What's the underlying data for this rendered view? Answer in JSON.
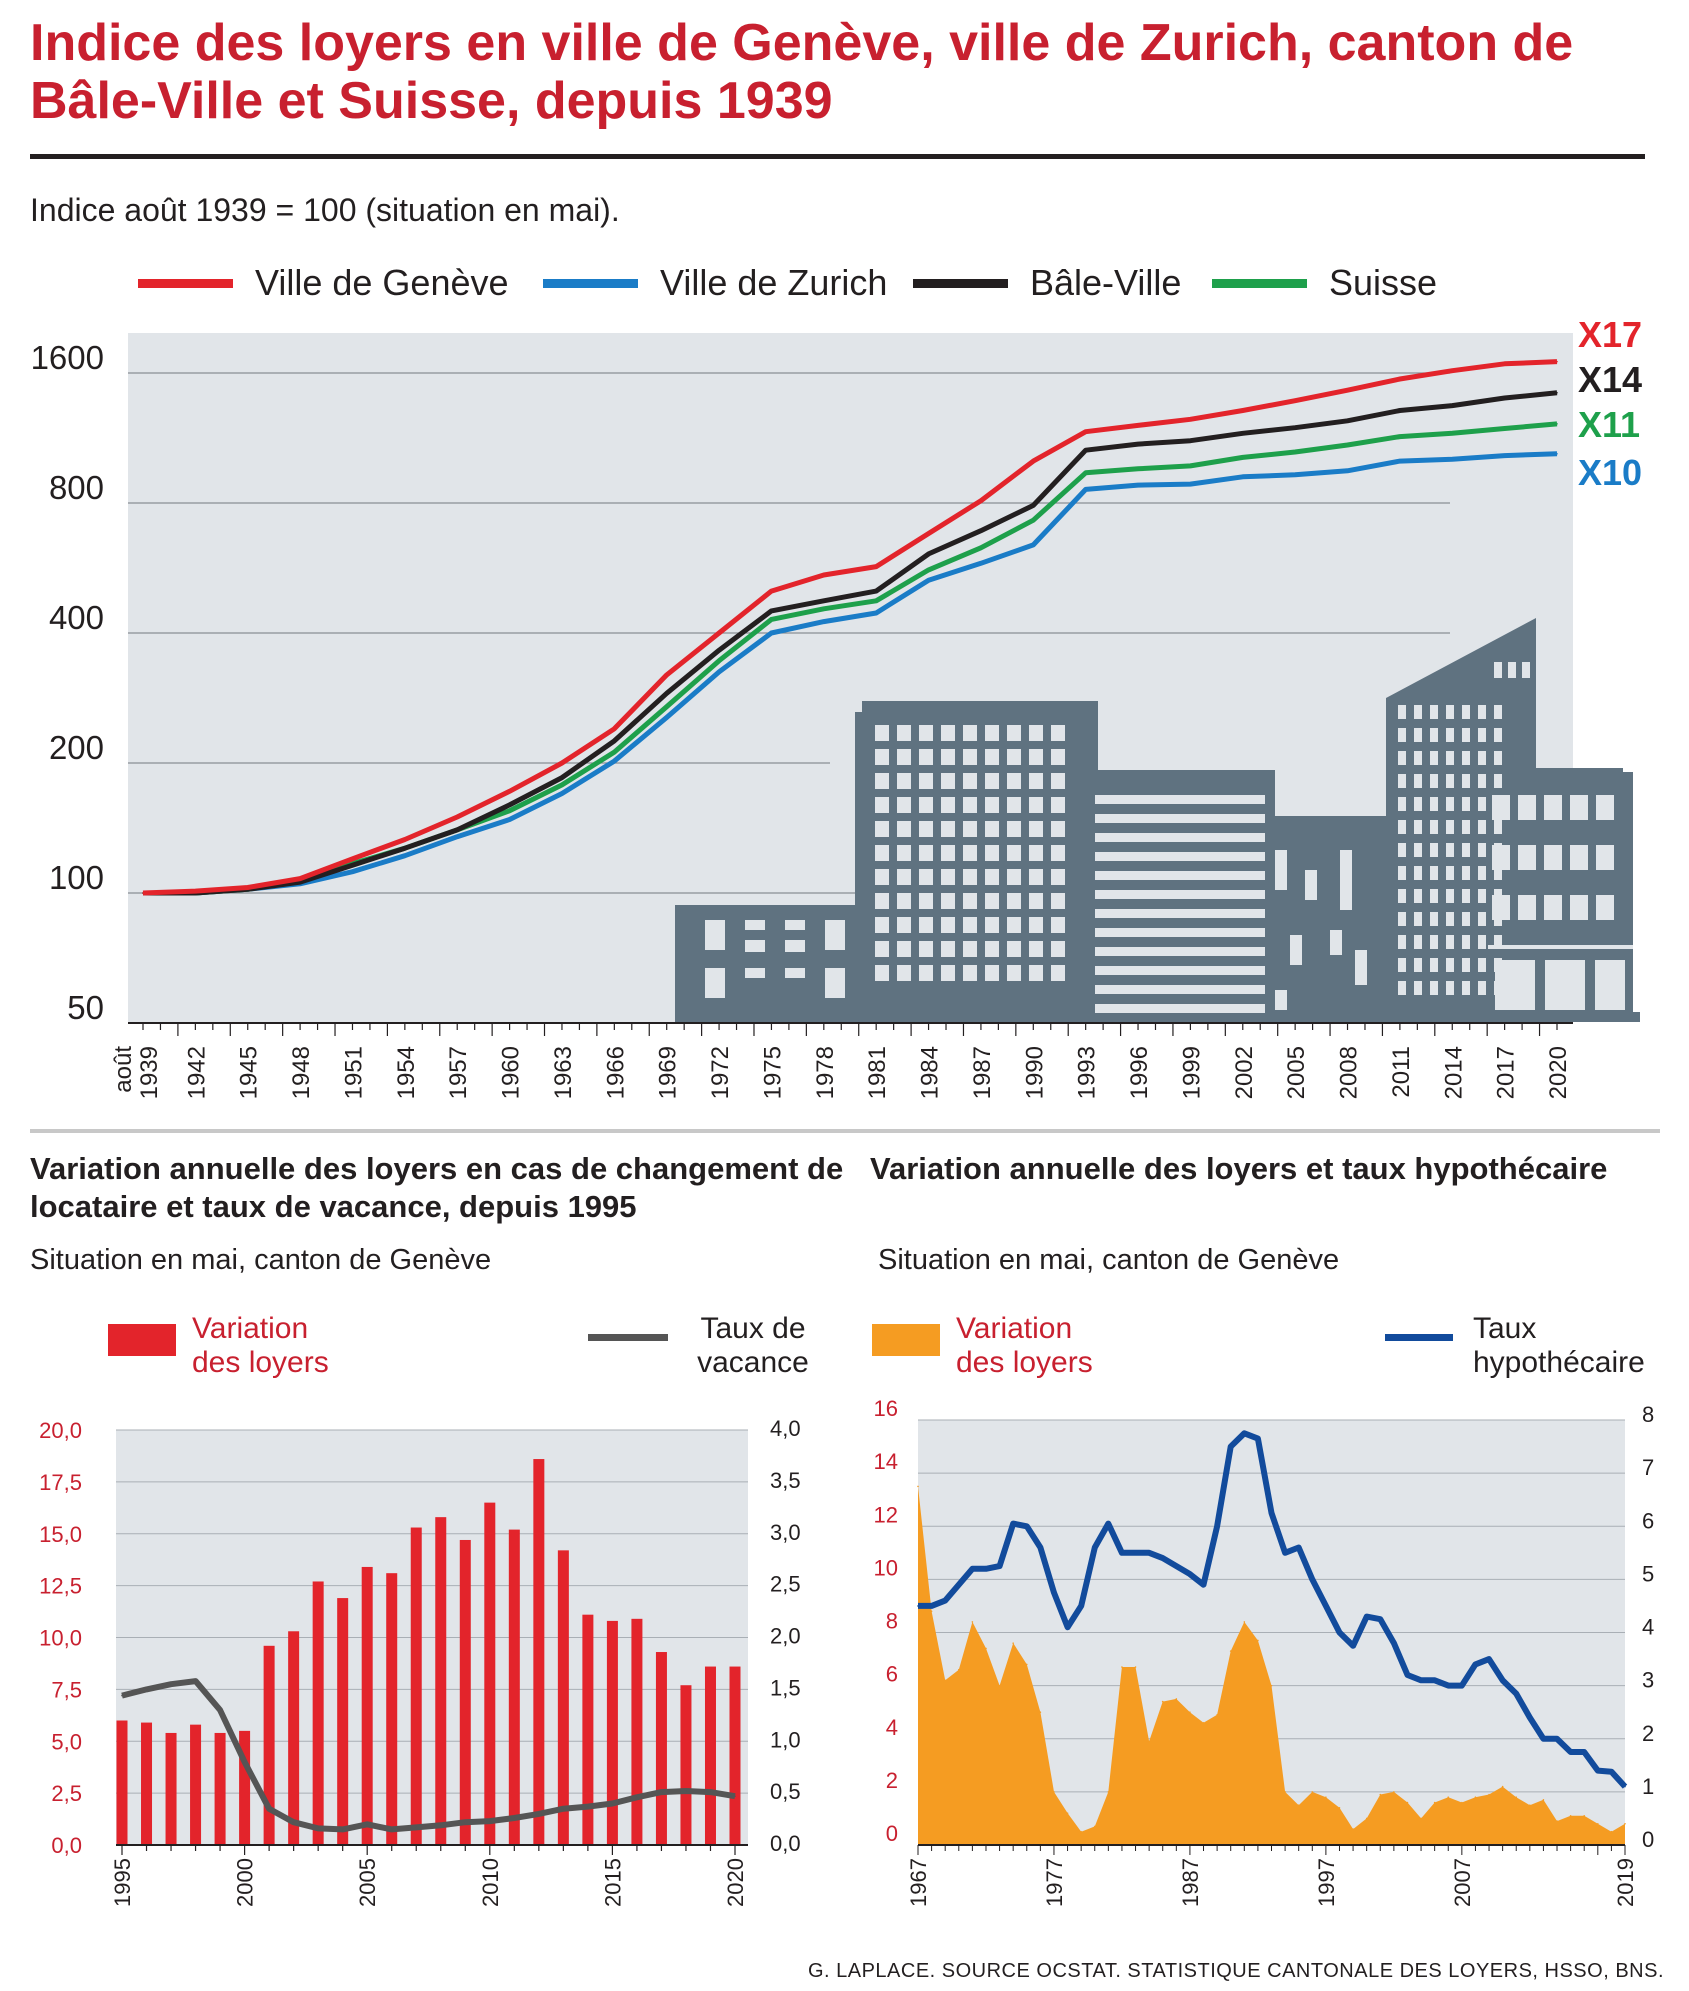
{
  "title": "Indice des loyers en ville de Genève, ville de Zurich, canton de Bâle-Ville et Suisse, depuis 1939",
  "subtitle": "Indice août 1939 = 100 (situation en mai).",
  "source": "G. LAPLACE. SOURCE OCSTAT. STATISTIQUE CANTONALE DES LOYERS, HSSO, BNS.",
  "colors": {
    "geneve": "#e3242b",
    "zurich": "#1a7cc7",
    "bale": "#231f20",
    "suisse": "#1ea04b",
    "bar": "#e3242b",
    "vacance": "#555555",
    "orange": "#f59c22",
    "hypo": "#124b9c",
    "plot_bg": "#e1e5e9",
    "building": "#5f7280"
  },
  "chart_data": [
    {
      "type": "line",
      "title": "Indice des loyers en ville de Genève, ville de Zurich, canton de Bâle-Ville et Suisse, depuis 1939",
      "subtitle": "Indice août 1939 = 100 (situation en mai).",
      "scale": "log",
      "ylim": [
        50,
        2000
      ],
      "yticks": [
        50,
        100,
        200,
        400,
        800,
        1600
      ],
      "ytick_labels": [
        "50",
        "100",
        "200",
        "400",
        "800",
        "1600"
      ],
      "xlim": [
        1939,
        2020
      ],
      "xtick_labels": [
        "août 1939",
        "1942",
        "1945",
        "1948",
        "1951",
        "1954",
        "1957",
        "1960",
        "1963",
        "1966",
        "1969",
        "1972",
        "1975",
        "1978",
        "1981",
        "1984",
        "1987",
        "1990",
        "1993",
        "1996",
        "1999",
        "2002",
        "2005",
        "2008",
        "2011",
        "2014",
        "2017",
        "2020"
      ],
      "x": [
        1939,
        1942,
        1945,
        1948,
        1951,
        1954,
        1957,
        1960,
        1963,
        1966,
        1969,
        1972,
        1975,
        1978,
        1981,
        1984,
        1987,
        1990,
        1993,
        1996,
        1999,
        2002,
        2005,
        2008,
        2011,
        2014,
        2017,
        2020
      ],
      "series": [
        {
          "name": "Ville de Genève",
          "end_label": "X17",
          "values": [
            100,
            101,
            103,
            108,
            120,
            133,
            150,
            172,
            200,
            240,
            320,
            400,
            500,
            545,
            570,
            680,
            810,
            1000,
            1170,
            1210,
            1250,
            1310,
            1380,
            1460,
            1550,
            1620,
            1680,
            1700
          ]
        },
        {
          "name": "Ville de Zurich",
          "end_label": "X10",
          "values": [
            100,
            100,
            102,
            105,
            112,
            122,
            135,
            148,
            170,
            202,
            255,
            325,
            400,
            425,
            445,
            530,
            580,
            640,
            860,
            880,
            885,
            920,
            930,
            950,
            1000,
            1010,
            1030,
            1040
          ]
        },
        {
          "name": "Bâle-Ville",
          "end_label": "X14",
          "values": [
            100,
            100,
            102,
            106,
            116,
            127,
            140,
            160,
            185,
            225,
            290,
            365,
            450,
            475,
            500,
            610,
            690,
            790,
            1060,
            1095,
            1115,
            1160,
            1195,
            1240,
            1310,
            1345,
            1400,
            1440
          ]
        },
        {
          "name": "Suisse",
          "end_label": "X11",
          "values": [
            100,
            100,
            102,
            107,
            117,
            127,
            140,
            155,
            178,
            212,
            270,
            345,
            430,
            455,
            475,
            560,
            630,
            730,
            940,
            960,
            975,
            1020,
            1050,
            1090,
            1140,
            1160,
            1190,
            1220
          ]
        }
      ]
    },
    {
      "type": "bar",
      "title": "Variation annuelle des loyers en cas de changement de locataire et taux de vacance, depuis 1995",
      "subtitle": "Situation en mai, canton de Genève",
      "x": [
        1995,
        1996,
        1997,
        1998,
        1999,
        2000,
        2001,
        2002,
        2003,
        2004,
        2005,
        2006,
        2007,
        2008,
        2009,
        2010,
        2011,
        2012,
        2013,
        2014,
        2015,
        2016,
        2017,
        2018,
        2019,
        2020
      ],
      "xtick_labels": [
        "1995",
        "2000",
        "2005",
        "2010",
        "2015",
        "2020"
      ],
      "ylim": [
        0,
        20
      ],
      "yticks_left": [
        "0,0",
        "2,5",
        "5,0",
        "7,5",
        "10,0",
        "12,5",
        "15,0",
        "17,5",
        "20,0"
      ],
      "y2lim": [
        0,
        4
      ],
      "yticks_right": [
        "0,0",
        "0,5",
        "1,0",
        "1,5",
        "2,0",
        "2,5",
        "3,0",
        "3,5",
        "4,0"
      ],
      "series": [
        {
          "name": "Variation des loyers",
          "axis": "left",
          "kind": "bar",
          "values": [
            6.0,
            5.9,
            5.4,
            5.8,
            5.4,
            5.5,
            9.6,
            10.3,
            12.7,
            11.9,
            13.4,
            13.1,
            15.3,
            15.8,
            14.7,
            16.5,
            15.2,
            18.6,
            14.2,
            11.1,
            10.8,
            10.9,
            9.3,
            7.7,
            8.6,
            8.6
          ]
        },
        {
          "name": "Taux de vacance",
          "axis": "right",
          "kind": "line",
          "values": [
            1.44,
            1.5,
            1.55,
            1.58,
            1.3,
            0.8,
            0.35,
            0.22,
            0.16,
            0.15,
            0.2,
            0.15,
            0.17,
            0.19,
            0.22,
            0.23,
            0.26,
            0.3,
            0.35,
            0.37,
            0.4,
            0.46,
            0.51,
            0.52,
            0.51,
            0.47
          ]
        }
      ],
      "legend": {
        "bars": "Variation des loyers",
        "line": "Taux de vacance"
      }
    },
    {
      "type": "area",
      "title": "Variation annuelle des loyers et taux hypothécaire",
      "subtitle": "Situation en mai, canton de Genève",
      "x": [
        1967,
        1968,
        1969,
        1970,
        1971,
        1972,
        1973,
        1974,
        1975,
        1976,
        1977,
        1978,
        1979,
        1980,
        1981,
        1982,
        1983,
        1984,
        1985,
        1986,
        1987,
        1988,
        1989,
        1990,
        1991,
        1992,
        1993,
        1994,
        1995,
        1996,
        1997,
        1998,
        1999,
        2000,
        2001,
        2002,
        2003,
        2004,
        2005,
        2006,
        2007,
        2008,
        2009,
        2010,
        2011,
        2012,
        2013,
        2014,
        2015,
        2016,
        2017,
        2018,
        2019
      ],
      "xtick_labels": [
        "1967",
        "1977",
        "1987",
        "1997",
        "2007",
        "2019"
      ],
      "ylim": [
        0,
        16
      ],
      "yticks_left": [
        "0",
        "2",
        "4",
        "6",
        "8",
        "10",
        "12",
        "14",
        "16"
      ],
      "y2lim": [
        0,
        8
      ],
      "yticks_right": [
        "0",
        "1",
        "2",
        "3",
        "4",
        "5",
        "6",
        "7",
        "8"
      ],
      "series": [
        {
          "name": "Variation des loyers",
          "axis": "left",
          "kind": "area",
          "values": [
            13.5,
            8.8,
            6.2,
            6.6,
            8.4,
            7.4,
            6.0,
            7.6,
            6.8,
            5.0,
            2.0,
            1.2,
            0.5,
            0.7,
            2.0,
            6.7,
            6.7,
            3.9,
            5.4,
            5.5,
            5.0,
            4.6,
            4.9,
            7.3,
            8.4,
            7.7,
            6.0,
            2.0,
            1.5,
            2.0,
            1.8,
            1.4,
            0.6,
            1.0,
            1.9,
            2.0,
            1.6,
            1.0,
            1.6,
            1.8,
            1.6,
            1.8,
            1.9,
            2.2,
            1.8,
            1.5,
            1.7,
            0.9,
            1.1,
            1.1,
            0.8,
            0.5,
            0.8
          ]
        },
        {
          "name": "Taux hypothécaire",
          "axis": "right",
          "kind": "line",
          "values": [
            4.5,
            4.5,
            4.6,
            4.9,
            5.2,
            5.2,
            5.25,
            6.05,
            6.0,
            5.6,
            4.75,
            4.1,
            4.5,
            5.6,
            6.05,
            5.5,
            5.5,
            5.5,
            5.4,
            5.25,
            5.1,
            4.9,
            6.0,
            7.5,
            7.75,
            7.65,
            6.25,
            5.5,
            5.6,
            5.0,
            4.5,
            4.0,
            3.75,
            4.3,
            4.25,
            3.8,
            3.2,
            3.1,
            3.1,
            3.0,
            3.0,
            3.4,
            3.5,
            3.1,
            2.85,
            2.4,
            2.0,
            2.0,
            1.75,
            1.75,
            1.4,
            1.38,
            1.1
          ]
        }
      ],
      "legend": {
        "area": "Variation des loyers",
        "line": "Taux hypothécaire"
      }
    }
  ]
}
